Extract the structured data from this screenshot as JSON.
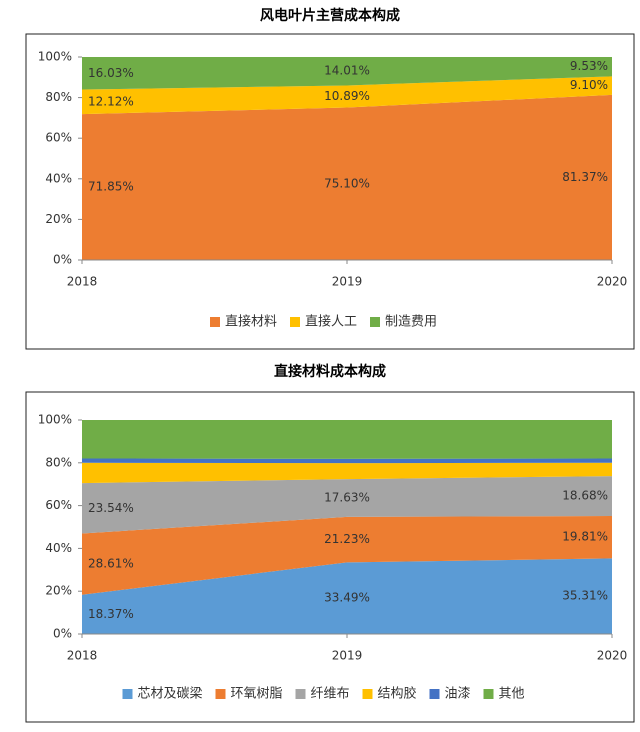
{
  "chart_data": [
    {
      "type": "area",
      "stacked": true,
      "title": "风电叶片主营成本构成",
      "x": [
        2018,
        2019,
        2020
      ],
      "xlim": [
        2018,
        2020
      ],
      "xticks": [
        2018,
        2019,
        2020
      ],
      "ylim": [
        0,
        100
      ],
      "yticks": [
        {
          "value": 0,
          "label": "0%"
        },
        {
          "value": 20,
          "label": "20%"
        },
        {
          "value": 40,
          "label": "40%"
        },
        {
          "value": 60,
          "label": "60%"
        },
        {
          "value": 80,
          "label": "80%"
        },
        {
          "value": 100,
          "label": "100%"
        }
      ],
      "grid": false,
      "legend": "bottom",
      "series": [
        {
          "name": "直接材料",
          "color": "#ed7d31",
          "values": [
            71.85,
            75.1,
            81.37
          ],
          "value_labels": [
            "71.85%",
            "75.10%",
            "81.37%"
          ]
        },
        {
          "name": "直接人工",
          "color": "#ffc000",
          "values": [
            12.12,
            10.89,
            9.1
          ],
          "value_labels": [
            "12.12%",
            "10.89%",
            "9.10%"
          ]
        },
        {
          "name": "制造费用",
          "color": "#70ad47",
          "values": [
            16.03,
            14.01,
            9.53
          ],
          "value_labels": [
            "16.03%",
            "14.01%",
            "9.53%"
          ]
        }
      ]
    },
    {
      "type": "area",
      "stacked": true,
      "title": "直接材料成本构成",
      "x": [
        2018,
        2019,
        2020
      ],
      "xlim": [
        2018,
        2020
      ],
      "xticks": [
        2018,
        2019,
        2020
      ],
      "ylim": [
        0,
        100
      ],
      "yticks": [
        {
          "value": 0,
          "label": "0%"
        },
        {
          "value": 20,
          "label": "20%"
        },
        {
          "value": 40,
          "label": "40%"
        },
        {
          "value": 60,
          "label": "60%"
        },
        {
          "value": 80,
          "label": "80%"
        },
        {
          "value": 100,
          "label": "100%"
        }
      ],
      "grid": false,
      "legend": "bottom",
      "series": [
        {
          "name": "芯材及碳梁",
          "color": "#5b9bd5",
          "values": [
            18.37,
            33.49,
            35.31
          ],
          "value_labels": [
            "18.37%",
            "33.49%",
            "35.31%"
          ]
        },
        {
          "name": "环氧树脂",
          "color": "#ed7d31",
          "values": [
            28.61,
            21.23,
            19.81
          ],
          "value_labels": [
            "28.61%",
            "21.23%",
            "19.81%"
          ]
        },
        {
          "name": "纤维布",
          "color": "#a5a5a5",
          "values": [
            23.54,
            17.63,
            18.68
          ],
          "value_labels": [
            "23.54%",
            "17.63%",
            "18.68%"
          ]
        },
        {
          "name": "结构胶",
          "color": "#ffc000",
          "values": [
            9.5,
            7.5,
            6.2
          ]
        },
        {
          "name": "油漆",
          "color": "#4472c4",
          "values": [
            2,
            2,
            2
          ]
        },
        {
          "name": "其他",
          "color": "#70ad47",
          "values": [
            17.98,
            18.15,
            18
          ]
        }
      ]
    }
  ]
}
